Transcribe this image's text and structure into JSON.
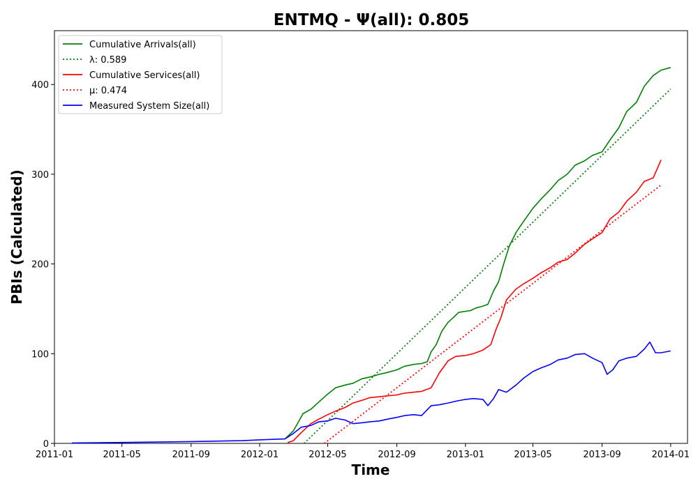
{
  "chart_data": {
    "type": "line",
    "title": "ENTMQ -  Ψ(all): 0.805",
    "xlabel": "Time",
    "ylabel": "PBIs (Calculated)",
    "xlim": [
      "2011-01-01",
      "2014-01-31"
    ],
    "ylim": [
      0,
      460
    ],
    "x_ticks": [
      "2011-01",
      "2011-05",
      "2011-09",
      "2012-01",
      "2012-05",
      "2012-09",
      "2013-01",
      "2013-05",
      "2013-09",
      "2014-01"
    ],
    "y_ticks": [
      0,
      100,
      200,
      300,
      400
    ],
    "grid": false,
    "legend_position": "top-left",
    "series": [
      {
        "name": "Cumulative Arrivals(all)",
        "color": "#008000",
        "style": "solid",
        "points": [
          [
            "2012-02-15",
            5
          ],
          [
            "2012-03-01",
            14
          ],
          [
            "2012-03-10",
            24
          ],
          [
            "2012-03-18",
            33
          ],
          [
            "2012-04-01",
            38
          ],
          [
            "2012-04-15",
            46
          ],
          [
            "2012-05-01",
            55
          ],
          [
            "2012-05-15",
            62
          ],
          [
            "2012-06-01",
            65
          ],
          [
            "2012-06-15",
            67
          ],
          [
            "2012-07-01",
            72
          ],
          [
            "2012-07-15",
            74
          ],
          [
            "2012-08-01",
            77
          ],
          [
            "2012-08-15",
            79
          ],
          [
            "2012-09-01",
            82
          ],
          [
            "2012-09-15",
            86
          ],
          [
            "2012-10-01",
            88
          ],
          [
            "2012-10-15",
            89
          ],
          [
            "2012-10-25",
            91
          ],
          [
            "2012-11-01",
            102
          ],
          [
            "2012-11-10",
            110
          ],
          [
            "2012-11-20",
            125
          ],
          [
            "2012-12-01",
            135
          ],
          [
            "2012-12-10",
            140
          ],
          [
            "2012-12-20",
            146
          ],
          [
            "2013-01-10",
            148
          ],
          [
            "2013-01-20",
            151
          ],
          [
            "2013-02-01",
            153
          ],
          [
            "2013-02-10",
            155
          ],
          [
            "2013-02-20",
            170
          ],
          [
            "2013-03-01",
            180
          ],
          [
            "2013-03-10",
            200
          ],
          [
            "2013-03-20",
            220
          ],
          [
            "2013-04-01",
            235
          ],
          [
            "2013-04-15",
            248
          ],
          [
            "2013-05-01",
            262
          ],
          [
            "2013-05-15",
            272
          ],
          [
            "2013-06-01",
            283
          ],
          [
            "2013-06-15",
            293
          ],
          [
            "2013-07-01",
            300
          ],
          [
            "2013-07-15",
            310
          ],
          [
            "2013-08-01",
            315
          ],
          [
            "2013-08-15",
            321
          ],
          [
            "2013-09-01",
            325
          ],
          [
            "2013-09-15",
            338
          ],
          [
            "2013-10-01",
            352
          ],
          [
            "2013-10-15",
            370
          ],
          [
            "2013-11-01",
            380
          ],
          [
            "2013-11-15",
            398
          ],
          [
            "2013-12-01",
            410
          ],
          [
            "2013-12-15",
            416
          ],
          [
            "2014-01-01",
            419
          ]
        ]
      },
      {
        "name": "λ: 0.589",
        "color": "#008000",
        "style": "dotted",
        "points": [
          [
            "2012-03-20",
            0
          ],
          [
            "2014-01-01",
            395
          ]
        ]
      },
      {
        "name": "Cumulative Services(all)",
        "color": "#ff0000",
        "style": "solid",
        "points": [
          [
            "2012-02-20",
            1
          ],
          [
            "2012-03-01",
            3
          ],
          [
            "2012-03-15",
            12
          ],
          [
            "2012-04-01",
            22
          ],
          [
            "2012-04-15",
            27
          ],
          [
            "2012-05-01",
            32
          ],
          [
            "2012-05-15",
            36
          ],
          [
            "2012-06-01",
            40
          ],
          [
            "2012-06-15",
            45
          ],
          [
            "2012-07-01",
            48
          ],
          [
            "2012-07-15",
            51
          ],
          [
            "2012-08-01",
            52
          ],
          [
            "2012-08-15",
            53
          ],
          [
            "2012-09-01",
            54
          ],
          [
            "2012-09-15",
            56
          ],
          [
            "2012-10-01",
            57
          ],
          [
            "2012-10-15",
            58
          ],
          [
            "2012-11-01",
            62
          ],
          [
            "2012-11-15",
            78
          ],
          [
            "2012-12-01",
            92
          ],
          [
            "2012-12-15",
            97
          ],
          [
            "2013-01-01",
            98
          ],
          [
            "2013-01-15",
            100
          ],
          [
            "2013-02-01",
            104
          ],
          [
            "2013-02-15",
            110
          ],
          [
            "2013-02-25",
            128
          ],
          [
            "2013-03-05",
            140
          ],
          [
            "2013-03-15",
            160
          ],
          [
            "2013-04-01",
            172
          ],
          [
            "2013-04-15",
            178
          ],
          [
            "2013-05-01",
            184
          ],
          [
            "2013-05-15",
            190
          ],
          [
            "2013-06-01",
            196
          ],
          [
            "2013-06-15",
            202
          ],
          [
            "2013-07-01",
            205
          ],
          [
            "2013-07-15",
            212
          ],
          [
            "2013-08-01",
            222
          ],
          [
            "2013-08-15",
            228
          ],
          [
            "2013-09-01",
            235
          ],
          [
            "2013-09-15",
            250
          ],
          [
            "2013-10-01",
            258
          ],
          [
            "2013-10-15",
            270
          ],
          [
            "2013-11-01",
            280
          ],
          [
            "2013-11-15",
            292
          ],
          [
            "2013-12-01",
            296
          ],
          [
            "2013-12-15",
            316
          ]
        ]
      },
      {
        "name": "μ: 0.474",
        "color": "#ff0000",
        "style": "dotted",
        "points": [
          [
            "2012-04-25",
            0
          ],
          [
            "2013-12-15",
            288
          ]
        ]
      },
      {
        "name": "Measured System Size(all)",
        "color": "#0000ff",
        "style": "solid",
        "points": [
          [
            "2011-02-01",
            0.5
          ],
          [
            "2011-05-01",
            1
          ],
          [
            "2011-09-01",
            2
          ],
          [
            "2011-12-01",
            3
          ],
          [
            "2012-01-01",
            4
          ],
          [
            "2012-02-15",
            5
          ],
          [
            "2012-03-01",
            11
          ],
          [
            "2012-03-15",
            18
          ],
          [
            "2012-04-01",
            20
          ],
          [
            "2012-04-15",
            24
          ],
          [
            "2012-05-01",
            25
          ],
          [
            "2012-05-15",
            28
          ],
          [
            "2012-06-01",
            26
          ],
          [
            "2012-06-15",
            22
          ],
          [
            "2012-07-01",
            23
          ],
          [
            "2012-07-15",
            24
          ],
          [
            "2012-08-01",
            25
          ],
          [
            "2012-08-15",
            27
          ],
          [
            "2012-09-01",
            29
          ],
          [
            "2012-09-15",
            31
          ],
          [
            "2012-10-01",
            32
          ],
          [
            "2012-10-15",
            31
          ],
          [
            "2012-11-01",
            42
          ],
          [
            "2012-11-15",
            43
          ],
          [
            "2012-12-01",
            45
          ],
          [
            "2012-12-15",
            47
          ],
          [
            "2013-01-01",
            49
          ],
          [
            "2013-01-15",
            50
          ],
          [
            "2013-02-01",
            49
          ],
          [
            "2013-02-10",
            42
          ],
          [
            "2013-02-20",
            50
          ],
          [
            "2013-03-01",
            60
          ],
          [
            "2013-03-15",
            57
          ],
          [
            "2013-04-01",
            65
          ],
          [
            "2013-04-15",
            73
          ],
          [
            "2013-05-01",
            80
          ],
          [
            "2013-05-15",
            84
          ],
          [
            "2013-06-01",
            88
          ],
          [
            "2013-06-15",
            93
          ],
          [
            "2013-07-01",
            95
          ],
          [
            "2013-07-15",
            99
          ],
          [
            "2013-08-01",
            100
          ],
          [
            "2013-08-15",
            95
          ],
          [
            "2013-09-01",
            90
          ],
          [
            "2013-09-10",
            77
          ],
          [
            "2013-09-20",
            82
          ],
          [
            "2013-10-01",
            92
          ],
          [
            "2013-10-15",
            95
          ],
          [
            "2013-11-01",
            97
          ],
          [
            "2013-11-15",
            105
          ],
          [
            "2013-11-25",
            113
          ],
          [
            "2013-12-05",
            101
          ],
          [
            "2013-12-15",
            101
          ],
          [
            "2014-01-01",
            103
          ]
        ]
      }
    ]
  }
}
